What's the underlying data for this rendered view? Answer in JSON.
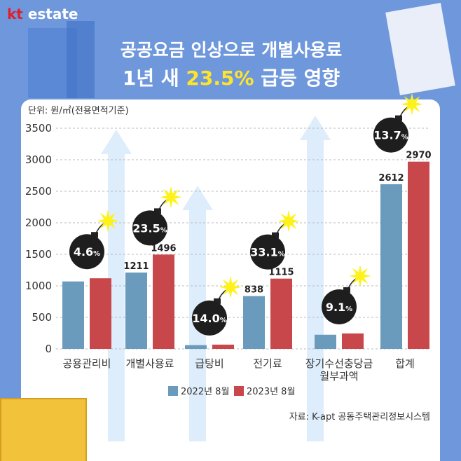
{
  "header": {
    "logo_kt": "kt",
    "logo_estate": " estate",
    "title_line1": "공공요금 인상으로 개별사용료",
    "title_line2_pre": "1년 새 ",
    "title_line2_hl": "23.5%",
    "title_line2_post": " 급등 영향"
  },
  "chart_data": {
    "type": "bar",
    "unit_label": "단위: 원/㎡(전용면적기준)",
    "categories": [
      "공용관리비",
      "개별사용료",
      "급탕비",
      "전기료",
      "장기수선충당금\n월부과액",
      "합계"
    ],
    "series": [
      {
        "name": "2022년 8월",
        "color": "#6a9bbd",
        "values": [
          1070,
          1211,
          60,
          838,
          225,
          2612
        ],
        "labels": [
          "",
          "1211",
          "",
          "838",
          "",
          "2612"
        ]
      },
      {
        "name": "2023년 8월",
        "color": "#c8474b",
        "values": [
          1120,
          1496,
          68,
          1115,
          245,
          2970
        ],
        "labels": [
          "",
          "1496",
          "",
          "1115",
          "",
          "2970"
        ]
      }
    ],
    "increase_labels": [
      "4.6",
      "23.5",
      "14.0",
      "33.1",
      "9.1",
      "13.7"
    ],
    "percent_sign": "%",
    "yticks": [
      0,
      500,
      1000,
      1500,
      2000,
      2500,
      3000,
      3500
    ],
    "ylim": [
      0,
      3500
    ],
    "grid": true,
    "legend_position": "bottom"
  },
  "source": "자료: K-apt 공동주택관리정보시스템"
}
